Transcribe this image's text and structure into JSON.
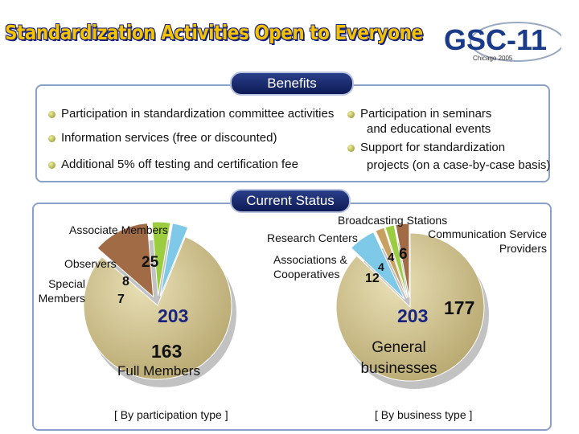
{
  "title": "Standardization Activities Open to Everyone",
  "logo": {
    "name": "GSC-11",
    "sub": "Chicago 2005"
  },
  "benefits": {
    "heading": "Benefits",
    "left": [
      "Participation in standardization committee activities",
      "Information services (free or discounted)",
      "Additional 5% off testing and certification fee"
    ],
    "right": [
      {
        "line1": "Participation in seminars",
        "line2": "and educational events"
      },
      {
        "line1": "Support for standardization",
        "line2": "projects (on a case-by-case basis)"
      }
    ]
  },
  "status": {
    "heading": "Current Status",
    "left_chart": {
      "caption": "[ By participation type ]",
      "associate_label": "Associate Members",
      "associate_value": "25",
      "observers_label": "Observers",
      "observers_value": "8",
      "special_label": "Special Members",
      "special_value": "7",
      "total": "203",
      "full_label": "Full Members",
      "full_value": "163"
    },
    "right_chart": {
      "caption": "[ By business type ]",
      "broadcasting_label": "Broadcasting Stations",
      "broadcasting_value": "4",
      "comm_label": "Communication Service Providers",
      "comm_value": "6",
      "research_label": "Research Centers",
      "research_value": "4",
      "assoc_label": "Associations & Cooperatives",
      "assoc_value": "12",
      "total": "203",
      "general_label": "General businesses",
      "general_value": "177"
    }
  },
  "chart_data": [
    {
      "type": "pie",
      "title": "[ By participation type ]",
      "total": 203,
      "categories": [
        "Full Members",
        "Associate Members",
        "Observers",
        "Special Members"
      ],
      "values": [
        163,
        25,
        8,
        7
      ]
    },
    {
      "type": "pie",
      "title": "[ By business type ]",
      "total": 203,
      "categories": [
        "General businesses",
        "Associations & Cooperatives",
        "Research Centers",
        "Broadcasting Stations",
        "Communication Service Providers"
      ],
      "values": [
        177,
        12,
        4,
        4,
        6
      ]
    }
  ],
  "colors": {
    "navy": "#1a237e",
    "gold": "#f5c200",
    "pie_main": "#cdbf8a",
    "green": "#9ccc40",
    "lightblue": "#7ec8e8",
    "brown": "#a06b45"
  }
}
